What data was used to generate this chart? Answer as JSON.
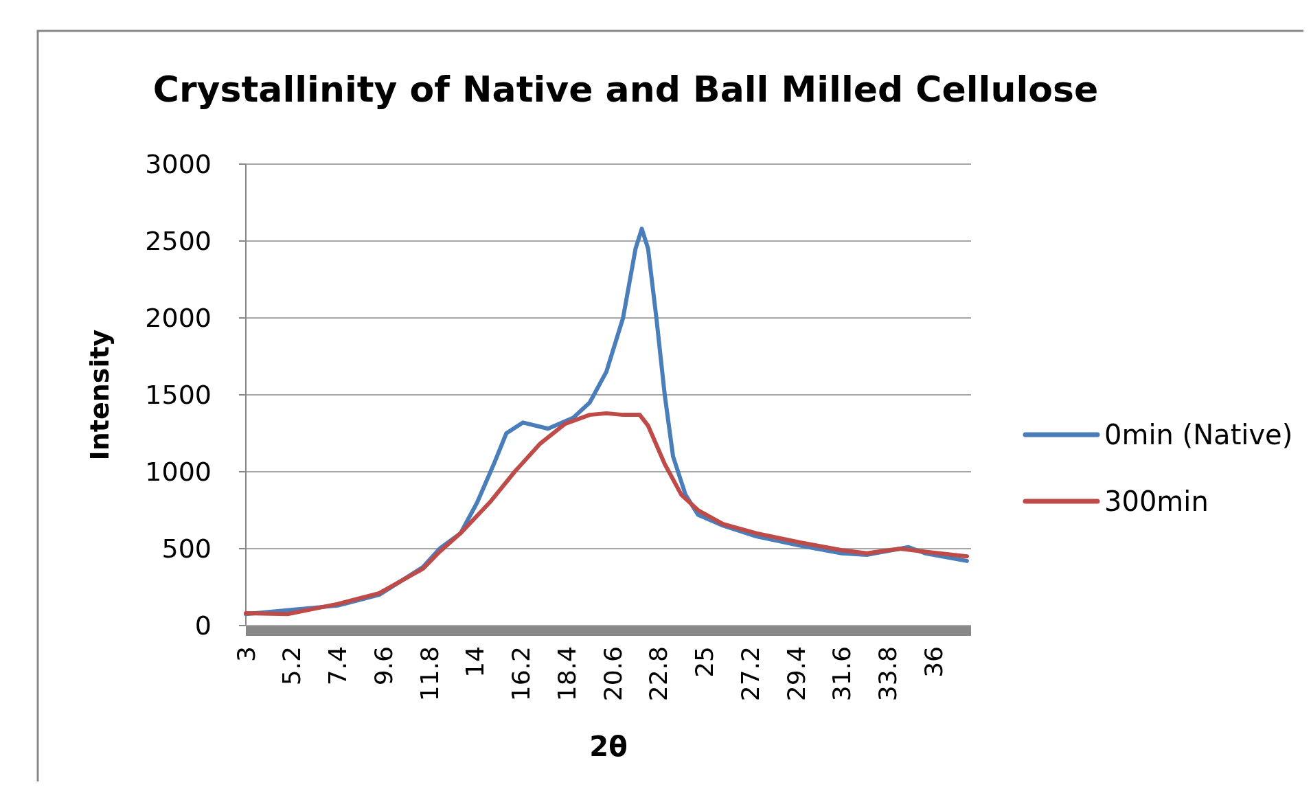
{
  "chart_data": {
    "type": "line",
    "title": "Crystallinity of Native and Ball Milled Cellulose",
    "xlabel": "2θ",
    "ylabel": "Intensity",
    "xlim": [
      3,
      37.8
    ],
    "xticks": [
      3,
      5.2,
      7.4,
      9.6,
      11.8,
      14,
      16.2,
      18.4,
      20.6,
      22.8,
      25,
      27.2,
      29.4,
      31.6,
      33.8,
      36
    ],
    "ylim": [
      0,
      3000
    ],
    "yticks": [
      0,
      500,
      1000,
      1500,
      2000,
      2500,
      3000
    ],
    "grid": "y",
    "legend": "right",
    "marker": "none",
    "line_style": "solid",
    "series": [
      {
        "name": "0min (Native)",
        "color": "#4a7ebb",
        "x": [
          3,
          7.4,
          9.4,
          11.5,
          12.3,
          13.3,
          14.1,
          14.9,
          15.5,
          16.3,
          17.5,
          18.7,
          19.5,
          20.3,
          21.1,
          21.7,
          22.0,
          22.3,
          22.7,
          23.1,
          23.5,
          24.1,
          24.7,
          25.9,
          27.5,
          29.6,
          31.6,
          32.8,
          34.0,
          34.8,
          35.6,
          37.6
        ],
        "values": [
          75,
          130,
          200,
          380,
          500,
          600,
          800,
          1050,
          1250,
          1320,
          1280,
          1350,
          1450,
          1650,
          2000,
          2450,
          2580,
          2450,
          2000,
          1500,
          1100,
          850,
          720,
          650,
          580,
          520,
          470,
          460,
          490,
          510,
          470,
          420
        ]
      },
      {
        "name": "300min",
        "color": "#be4b48",
        "x": [
          3,
          5.0,
          7.4,
          9.4,
          11.5,
          12.3,
          13.3,
          14.7,
          15.9,
          17.1,
          18.3,
          19.5,
          20.3,
          21.1,
          21.9,
          22.3,
          23.1,
          23.9,
          24.7,
          25.9,
          27.5,
          29.6,
          31.6,
          32.8,
          34.4,
          35.6,
          37.6
        ],
        "values": [
          80,
          75,
          140,
          210,
          370,
          480,
          600,
          800,
          1000,
          1180,
          1310,
          1370,
          1380,
          1370,
          1370,
          1300,
          1050,
          850,
          750,
          660,
          600,
          540,
          490,
          470,
          500,
          480,
          450
        ]
      }
    ]
  }
}
